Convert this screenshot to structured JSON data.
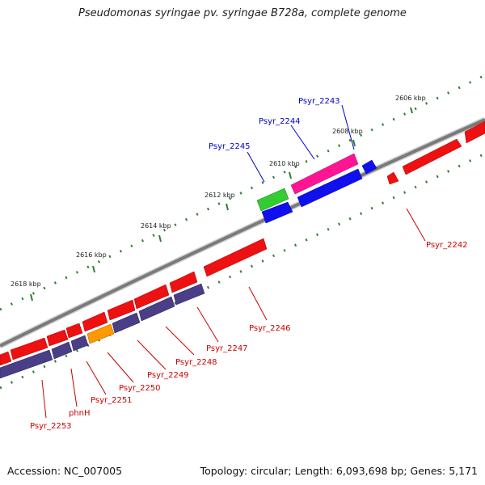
{
  "title": "Pseudomonas syringae pv. syringae B728a, complete genome",
  "footer": {
    "accession": "Accession: NC_007005",
    "summary": "Topology: circular; Length: 6,093,698 bp; Genes: 5,171"
  },
  "colors": {
    "backbone": "#888888",
    "tick": "#2f7f2f",
    "scale_label": "#222222",
    "forward_gene": "#ee1111",
    "reverse_gene": "#ee1111",
    "cds_dark": "#4a3f86",
    "cds_orange": "#ff9900",
    "label_blue": "#0000cc",
    "label_red": "#cc0000",
    "gene_blue": "#1010ee",
    "gene_magenta": "#ff1493",
    "gene_green": "#33cc33"
  },
  "scale_labels": [
    "2606 kbp",
    "2608 kbp",
    "2610 kbp",
    "2612 kbp",
    "2614 kbp",
    "2616 kbp",
    "2618 kbp"
  ],
  "gene_labels_outer": [
    "Psyr_2243",
    "Psyr_2244",
    "Psyr_2245"
  ],
  "gene_labels_inner": [
    "Psyr_2242",
    "Psyr_2246",
    "Psyr_2247",
    "Psyr_2248",
    "Psyr_2249",
    "Psyr_2250",
    "Psyr_2251",
    "phnH",
    "Psyr_2253"
  ]
}
